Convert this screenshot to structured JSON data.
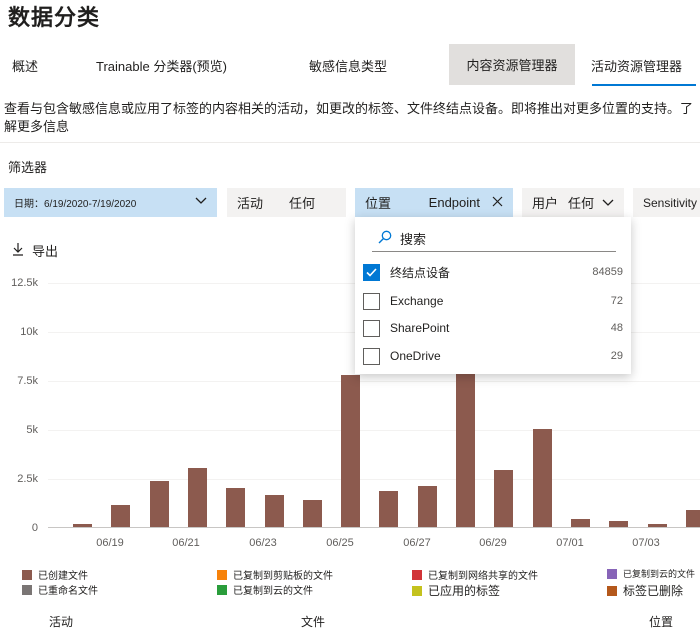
{
  "page": {
    "title": "数据分类"
  },
  "tabs": [
    {
      "label": "概述"
    },
    {
      "label": "Trainable 分类器(预览)"
    },
    {
      "label": "敏感信息类型"
    },
    {
      "label": "内容资源管理器"
    },
    {
      "label": "活动资源管理器"
    }
  ],
  "description": "查看与包含敏感信息或应用了标签的内容相关的活动，如更改的标签、文件终结点设备。即将推出对更多位置的支持。了解更多信息",
  "filters": {
    "label": "筛选器",
    "date": "日期：6/19/2020-7/19/2020",
    "activity": {
      "name": "活动",
      "value": "任何"
    },
    "location": {
      "name": "位置",
      "value": "Endpoint"
    },
    "user": {
      "name": "用户",
      "value": "任何"
    },
    "sensitivity": "Sensitivity"
  },
  "export_label": "导出",
  "location_dropdown": {
    "search_placeholder": "搜索",
    "options": [
      {
        "label": "终结点设备",
        "count": "84859",
        "checked": true
      },
      {
        "label": "Exchange",
        "count": "72",
        "checked": false
      },
      {
        "label": "SharePoint",
        "count": "48",
        "checked": false
      },
      {
        "label": "OneDrive",
        "count": "29",
        "checked": false
      }
    ]
  },
  "chart_data": {
    "type": "bar",
    "stacked": true,
    "y_ticks": [
      "12.5k",
      "10k",
      "7.5k",
      "5k",
      "2.5k",
      "0"
    ],
    "ylim": [
      0,
      12500
    ],
    "x_tick_labels": [
      "06/19",
      "06/21",
      "06/23",
      "06/25",
      "06/27",
      "06/29",
      "07/01",
      "07/03"
    ],
    "categories": [
      "06/18",
      "06/19",
      "06/20",
      "06/21",
      "06/22",
      "06/23",
      "06/24",
      "06/25",
      "06/26",
      "06/27",
      "06/28",
      "06/29",
      "06/30",
      "07/01",
      "07/02",
      "07/03",
      "07/04"
    ],
    "values": [
      150,
      1100,
      2350,
      3000,
      2000,
      1650,
      1400,
      7750,
      1850,
      2100,
      8000,
      2900,
      5000,
      400,
      300,
      150,
      850
    ],
    "legend": [
      {
        "name": "已创建文件",
        "color": "#8c5a4e"
      },
      {
        "name": "已复制到剪贴板的文件",
        "color": "#f7820a"
      },
      {
        "name": "已复制到网络共享的文件",
        "color": "#d13438"
      },
      {
        "name": "已复制到云的文件",
        "color": "#8764b8"
      },
      {
        "name": "已重命名文件",
        "color": "#7a7574"
      },
      {
        "name": "已复制到云的文件",
        "color": "#2a9d3b"
      },
      {
        "name": "已应用的标签",
        "color": "#c4c21e"
      },
      {
        "name": "标签已删除",
        "color": "#b4581b"
      }
    ]
  },
  "footer": {
    "col1": "活动",
    "col2": "文件",
    "col3": "位置"
  }
}
